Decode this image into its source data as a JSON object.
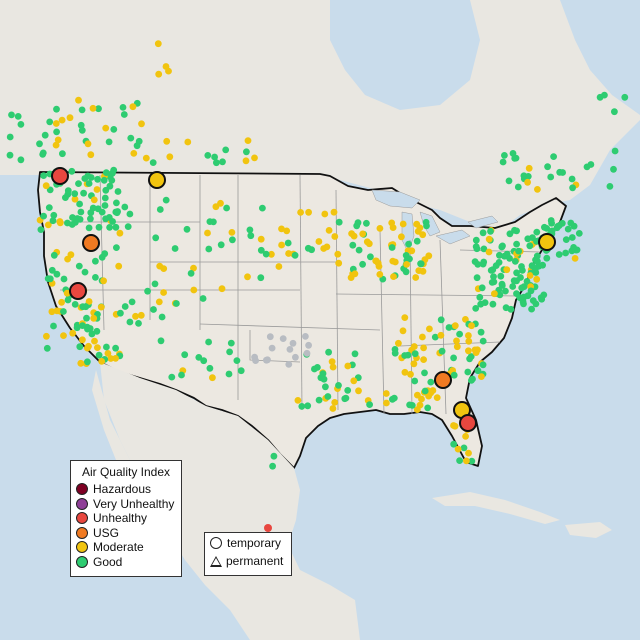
{
  "map": {
    "colors": {
      "water": "#c9dceb",
      "land": "#e9e7e1",
      "land_us": "#ece8e1",
      "border": "#111111",
      "state_line": "#9a9a9a",
      "no_data": "#b8bcc2"
    },
    "aqi_colors": {
      "Hazardous": "#7e0023",
      "Very Unhealthy": "#8f3f97",
      "Unhealthy": "#e8473f",
      "USG": "#f07a22",
      "Moderate": "#f1c40f",
      "Good": "#2ecc71"
    }
  },
  "legend": {
    "title": "Air Quality Index",
    "categories": [
      {
        "label": "Hazardous",
        "color": "#7e0023"
      },
      {
        "label": "Very Unhealthy",
        "color": "#8f3f97"
      },
      {
        "label": "Unhealthy",
        "color": "#e8473f"
      },
      {
        "label": "USG",
        "color": "#f07a22"
      },
      {
        "label": "Moderate",
        "color": "#f1c40f"
      },
      {
        "label": "Good",
        "color": "#2ecc71"
      }
    ]
  },
  "type_legend": {
    "temporary": "temporary",
    "permanent": "permanent"
  }
}
